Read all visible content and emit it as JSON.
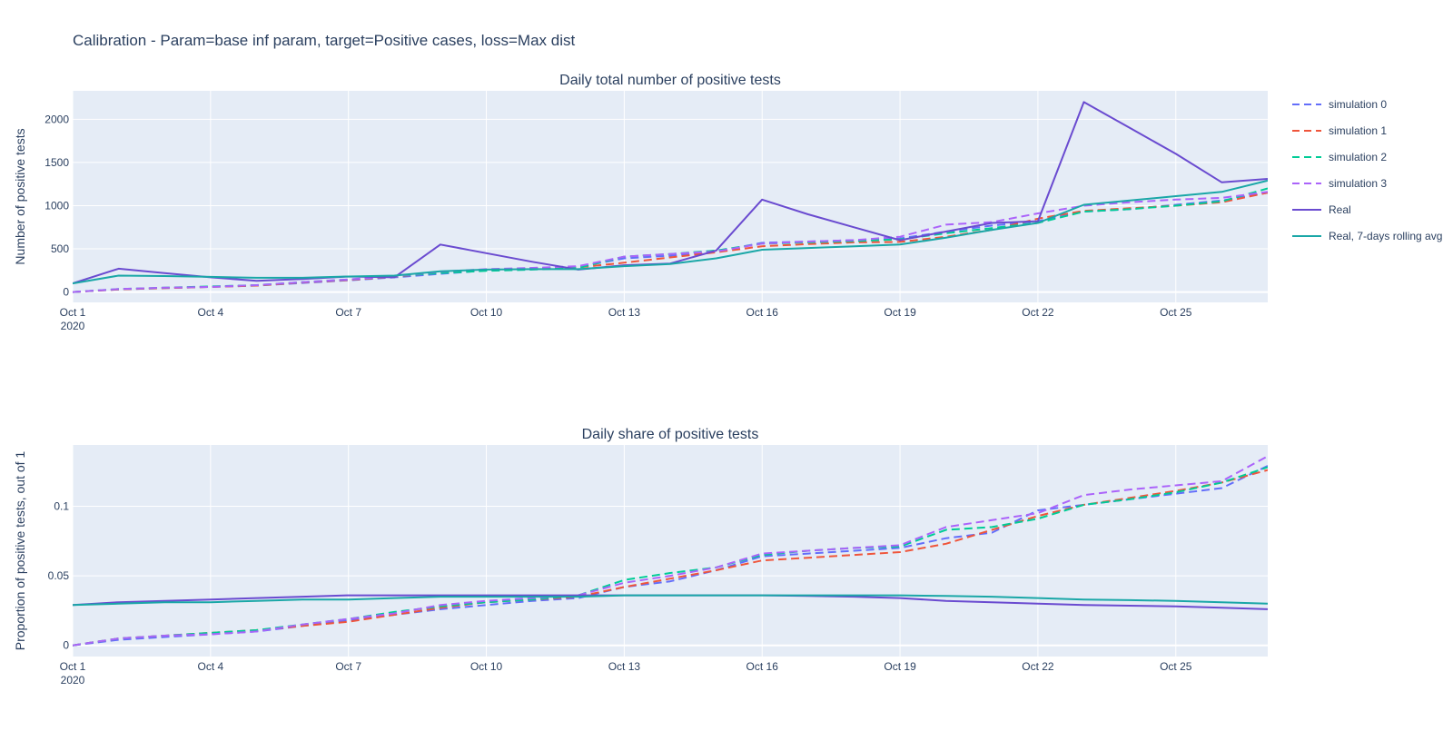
{
  "figure_title": "Calibration - Param=base inf param, target=Positive cases, loss=Max dist",
  "colors": {
    "background": "#ffffff",
    "plot_background": "#e5ecf6",
    "gridline": "#ffffff",
    "text": "#2a3f5f",
    "tick_text": "#2a3f5f"
  },
  "legend": {
    "placement": "top-right",
    "items": [
      {
        "name": "simulation 0",
        "color": "#636efa",
        "dash": "dash"
      },
      {
        "name": "simulation 1",
        "color": "#ef553b",
        "dash": "dash"
      },
      {
        "name": "simulation 2",
        "color": "#00cc96",
        "dash": "dash"
      },
      {
        "name": "simulation 3",
        "color": "#ab63fa",
        "dash": "dash"
      },
      {
        "name": "Real",
        "color": "#6a4bd0",
        "dash": "solid"
      },
      {
        "name": "Real, 7-days rolling avg",
        "color": "#1aa7a7",
        "dash": "solid"
      }
    ]
  },
  "chart_data": [
    {
      "type": "line",
      "title": "Daily total number of positive tests",
      "xlabel": "",
      "ylabel": "Number of positive tests",
      "grid": true,
      "x_start": "2020-10-01",
      "x_ticks": [
        "Oct 1",
        "Oct 4",
        "Oct 7",
        "Oct 10",
        "Oct 13",
        "Oct 16",
        "Oct 19",
        "Oct 22",
        "Oct 25"
      ],
      "x_tick_year": "2020",
      "y_ticks": [
        0,
        500,
        1000,
        1500,
        2000
      ],
      "xlim": [
        "2020-10-01",
        "2020-10-27"
      ],
      "ylim": [
        -120,
        2330
      ],
      "x": [
        "2020-10-01",
        "2020-10-02",
        "2020-10-03",
        "2020-10-04",
        "2020-10-05",
        "2020-10-06",
        "2020-10-07",
        "2020-10-08",
        "2020-10-09",
        "2020-10-10",
        "2020-10-11",
        "2020-10-12",
        "2020-10-13",
        "2020-10-14",
        "2020-10-15",
        "2020-10-16",
        "2020-10-17",
        "2020-10-18",
        "2020-10-19",
        "2020-10-20",
        "2020-10-21",
        "2020-10-22",
        "2020-10-23",
        "2020-10-24",
        "2020-10-25",
        "2020-10-26",
        "2020-10-27"
      ],
      "series": [
        {
          "name": "simulation 0",
          "values": [
            0,
            30,
            45,
            60,
            75,
            105,
            135,
            170,
            210,
            250,
            275,
            290,
            390,
            420,
            470,
            570,
            585,
            600,
            620,
            700,
            770,
            820,
            930,
            960,
            1010,
            1060,
            1150
          ]
        },
        {
          "name": "simulation 1",
          "values": [
            0,
            30,
            45,
            60,
            75,
            110,
            140,
            180,
            225,
            255,
            275,
            285,
            340,
            400,
            460,
            530,
            555,
            575,
            580,
            640,
            720,
            850,
            940,
            970,
            1000,
            1040,
            1150
          ]
        },
        {
          "name": "simulation 2",
          "values": [
            0,
            35,
            50,
            65,
            80,
            115,
            145,
            185,
            220,
            245,
            260,
            280,
            410,
            440,
            480,
            560,
            575,
            590,
            610,
            680,
            740,
            800,
            930,
            960,
            1000,
            1050,
            1200
          ]
        },
        {
          "name": "simulation 3",
          "values": [
            0,
            35,
            50,
            60,
            80,
            115,
            145,
            185,
            235,
            265,
            280,
            300,
            410,
            440,
            470,
            560,
            585,
            600,
            640,
            780,
            810,
            910,
            1000,
            1040,
            1070,
            1090,
            1160
          ]
        },
        {
          "name": "Real",
          "values": [
            100,
            270,
            220,
            170,
            130,
            150,
            180,
            170,
            550,
            450,
            350,
            260,
            310,
            330,
            480,
            1070,
            900,
            750,
            600,
            700,
            800,
            820,
            2200,
            1900,
            1600,
            1270,
            1310
          ]
        },
        {
          "name": "Real, 7-days rolling avg",
          "values": [
            100,
            190,
            185,
            175,
            165,
            165,
            180,
            190,
            240,
            260,
            265,
            265,
            300,
            325,
            390,
            490,
            510,
            530,
            550,
            630,
            720,
            800,
            1010,
            1060,
            1110,
            1160,
            1290
          ]
        }
      ]
    },
    {
      "type": "line",
      "title": "Daily share of positive tests",
      "xlabel": "",
      "ylabel": "Proportion of positive tests, out of 1",
      "grid": true,
      "x_start": "2020-10-01",
      "x_ticks": [
        "Oct 1",
        "Oct 4",
        "Oct 7",
        "Oct 10",
        "Oct 13",
        "Oct 16",
        "Oct 19",
        "Oct 22",
        "Oct 25"
      ],
      "x_tick_year": "2020",
      "y_ticks": [
        "0",
        "0.05",
        "0.1"
      ],
      "xlim": [
        "2020-10-01",
        "2020-10-27"
      ],
      "ylim": [
        -0.008,
        0.144
      ],
      "x": [
        "2020-10-01",
        "2020-10-02",
        "2020-10-03",
        "2020-10-04",
        "2020-10-05",
        "2020-10-06",
        "2020-10-07",
        "2020-10-08",
        "2020-10-09",
        "2020-10-10",
        "2020-10-11",
        "2020-10-12",
        "2020-10-13",
        "2020-10-14",
        "2020-10-15",
        "2020-10-16",
        "2020-10-17",
        "2020-10-18",
        "2020-10-19",
        "2020-10-20",
        "2020-10-21",
        "2020-10-22",
        "2020-10-23",
        "2020-10-24",
        "2020-10-25",
        "2020-10-26",
        "2020-10-27"
      ],
      "series": [
        {
          "name": "simulation 0",
          "values": [
            0.0,
            0.004,
            0.006,
            0.008,
            0.01,
            0.014,
            0.018,
            0.022,
            0.026,
            0.029,
            0.032,
            0.034,
            0.042,
            0.046,
            0.054,
            0.064,
            0.066,
            0.068,
            0.07,
            0.077,
            0.081,
            0.097,
            0.101,
            0.105,
            0.109,
            0.113,
            0.129
          ]
        },
        {
          "name": "simulation 1",
          "values": [
            0.0,
            0.005,
            0.007,
            0.009,
            0.011,
            0.014,
            0.017,
            0.022,
            0.027,
            0.031,
            0.033,
            0.035,
            0.042,
            0.048,
            0.054,
            0.061,
            0.063,
            0.065,
            0.067,
            0.073,
            0.083,
            0.093,
            0.101,
            0.106,
            0.111,
            0.117,
            0.126
          ]
        },
        {
          "name": "simulation 2",
          "values": [
            0.0,
            0.005,
            0.007,
            0.009,
            0.011,
            0.015,
            0.019,
            0.024,
            0.028,
            0.031,
            0.033,
            0.036,
            0.047,
            0.052,
            0.056,
            0.065,
            0.068,
            0.07,
            0.071,
            0.083,
            0.085,
            0.091,
            0.101,
            0.105,
            0.11,
            0.117,
            0.128
          ]
        },
        {
          "name": "simulation 3",
          "values": [
            0.0,
            0.005,
            0.007,
            0.008,
            0.01,
            0.015,
            0.019,
            0.023,
            0.029,
            0.032,
            0.034,
            0.036,
            0.045,
            0.05,
            0.056,
            0.066,
            0.068,
            0.07,
            0.072,
            0.085,
            0.09,
            0.095,
            0.108,
            0.112,
            0.115,
            0.118,
            0.136
          ]
        },
        {
          "name": "Real",
          "values": [
            0.029,
            0.031,
            0.032,
            0.033,
            0.034,
            0.035,
            0.036,
            0.036,
            0.036,
            0.036,
            0.036,
            0.036,
            0.036,
            0.036,
            0.036,
            0.036,
            0.0355,
            0.035,
            0.034,
            0.032,
            0.031,
            0.03,
            0.029,
            0.0285,
            0.028,
            0.027,
            0.026
          ]
        },
        {
          "name": "Real, 7-days rolling avg",
          "values": [
            0.029,
            0.03,
            0.031,
            0.031,
            0.032,
            0.033,
            0.033,
            0.034,
            0.035,
            0.035,
            0.035,
            0.035,
            0.036,
            0.036,
            0.036,
            0.036,
            0.036,
            0.036,
            0.036,
            0.0355,
            0.035,
            0.034,
            0.033,
            0.0325,
            0.032,
            0.031,
            0.03
          ]
        }
      ]
    }
  ]
}
